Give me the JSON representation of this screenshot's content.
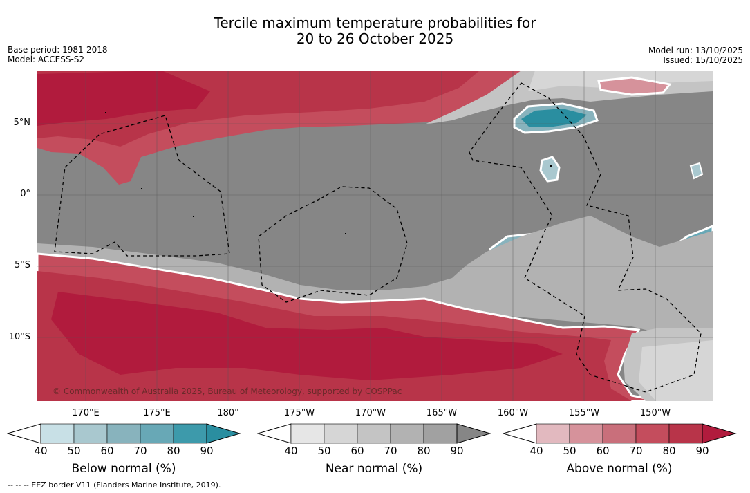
{
  "title": {
    "line1": "Tercile maximum temperature probabilities for",
    "line2": "20 to 26 October 2025"
  },
  "meta": {
    "base_period": "Base period: 1981-2018",
    "model": "Model: ACCESS-S2",
    "model_run": "Model run: 13/10/2025",
    "issued": "Issued: 15/10/2025"
  },
  "map": {
    "lat_labels": [
      "5°N",
      "0°",
      "5°S",
      "10°S"
    ],
    "lon_labels": [
      "170°E",
      "175°E",
      "180°",
      "175°W",
      "170°W",
      "165°W",
      "160°W",
      "155°W",
      "150°W"
    ],
    "copyright": "© Commonwealth of Australia 2025, Bureau of Meteorology, supported by COSPPac",
    "colors": {
      "below": [
        "#c8e0e6",
        "#a9c8cf",
        "#88b3bd",
        "#68a8b6",
        "#3d9aab",
        "#2a8ea0"
      ],
      "near": [
        "#e6e6e6",
        "#d6d6d6",
        "#c4c4c4",
        "#b2b2b2",
        "#a1a1a1",
        "#868686"
      ],
      "above": [
        "#e2b9bf",
        "#d6929b",
        "#c96f7b",
        "#c44d5d",
        "#b83449",
        "#b11b3d"
      ]
    }
  },
  "colorbars": {
    "ticks": [
      "40",
      "50",
      "60",
      "70",
      "80",
      "90"
    ],
    "below_title": "Below normal (%)",
    "near_title": "Near normal (%)",
    "above_title": "Above normal (%)"
  },
  "footer": {
    "eez": "--  --  -- EEZ border V11 (Flanders Marine Institute, 2019)."
  }
}
